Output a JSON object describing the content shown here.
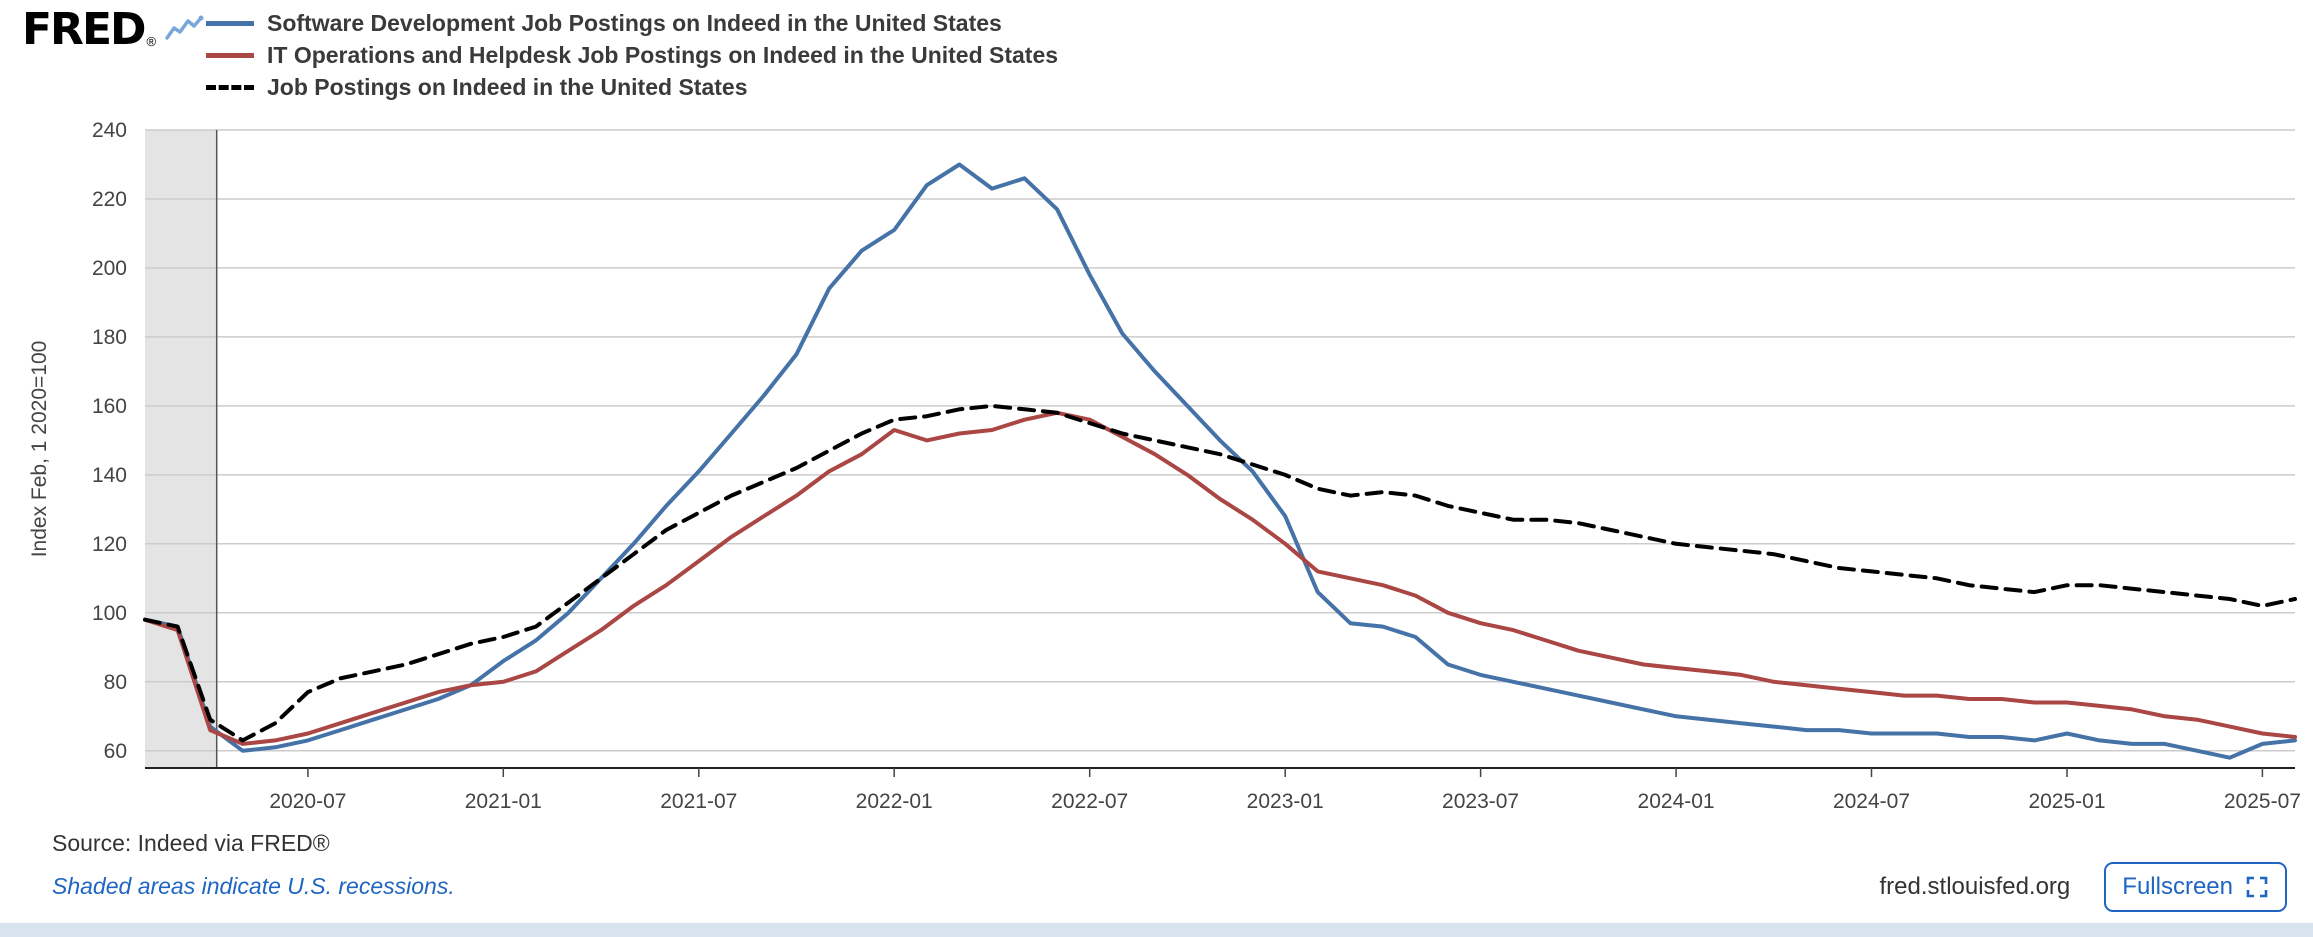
{
  "header": {
    "logo_text": "FRED",
    "logo_reg": "®"
  },
  "chart_data": {
    "type": "line",
    "title": "",
    "xlabel": "",
    "ylabel": "Index Feb, 1 2020=100",
    "ylim": [
      55,
      240
    ],
    "yticks": [
      60,
      80,
      100,
      120,
      140,
      160,
      180,
      200,
      220,
      240
    ],
    "grid": true,
    "legend_position": "top-left",
    "x": [
      "2020-02",
      "2020-03",
      "2020-04",
      "2020-05",
      "2020-06",
      "2020-07",
      "2020-08",
      "2020-09",
      "2020-10",
      "2020-11",
      "2020-12",
      "2021-01",
      "2021-02",
      "2021-03",
      "2021-04",
      "2021-05",
      "2021-06",
      "2021-07",
      "2021-08",
      "2021-09",
      "2021-10",
      "2021-11",
      "2021-12",
      "2022-01",
      "2022-02",
      "2022-03",
      "2022-04",
      "2022-05",
      "2022-06",
      "2022-07",
      "2022-08",
      "2022-09",
      "2022-10",
      "2022-11",
      "2022-12",
      "2023-01",
      "2023-02",
      "2023-03",
      "2023-04",
      "2023-05",
      "2023-06",
      "2023-07",
      "2023-08",
      "2023-09",
      "2023-10",
      "2023-11",
      "2023-12",
      "2024-01",
      "2024-02",
      "2024-03",
      "2024-04",
      "2024-05",
      "2024-06",
      "2024-07",
      "2024-08",
      "2024-09",
      "2024-10",
      "2024-11",
      "2024-12",
      "2025-01",
      "2025-02",
      "2025-03",
      "2025-04",
      "2025-05",
      "2025-06",
      "2025-07",
      "2025-08"
    ],
    "xticks": [
      {
        "label": "2020-07",
        "index": 5
      },
      {
        "label": "2021-01",
        "index": 11
      },
      {
        "label": "2021-07",
        "index": 17
      },
      {
        "label": "2022-01",
        "index": 23
      },
      {
        "label": "2022-07",
        "index": 29
      },
      {
        "label": "2023-01",
        "index": 35
      },
      {
        "label": "2023-07",
        "index": 41
      },
      {
        "label": "2024-01",
        "index": 47
      },
      {
        "label": "2024-07",
        "index": 53
      },
      {
        "label": "2025-01",
        "index": 59
      },
      {
        "label": "2025-07",
        "index": 65
      }
    ],
    "recession_band": {
      "start_index": 0,
      "end_index": 2.2
    },
    "series": [
      {
        "name": "Software Development Job Postings on Indeed in the United States",
        "color": "#4572a7",
        "dash": null,
        "values": [
          98,
          96,
          67,
          60,
          61,
          63,
          66,
          69,
          72,
          75,
          79,
          86,
          92,
          100,
          110,
          120,
          131,
          141,
          152,
          163,
          175,
          194,
          205,
          211,
          224,
          230,
          223,
          226,
          217,
          198,
          181,
          170,
          160,
          150,
          141,
          128,
          106,
          97,
          96,
          93,
          85,
          82,
          80,
          78,
          76,
          74,
          72,
          70,
          69,
          68,
          67,
          66,
          66,
          65,
          65,
          65,
          64,
          64,
          63,
          65,
          63,
          62,
          62,
          60,
          58,
          62,
          63
        ]
      },
      {
        "name": "IT Operations and Helpdesk Job Postings on Indeed in the United States",
        "color": "#aa4643",
        "dash": null,
        "values": [
          98,
          95,
          66,
          62,
          63,
          65,
          68,
          71,
          74,
          77,
          79,
          80,
          83,
          89,
          95,
          102,
          108,
          115,
          122,
          128,
          134,
          141,
          146,
          153,
          150,
          152,
          153,
          156,
          158,
          156,
          151,
          146,
          140,
          133,
          127,
          120,
          112,
          110,
          108,
          105,
          100,
          97,
          95,
          92,
          89,
          87,
          85,
          84,
          83,
          82,
          80,
          79,
          78,
          77,
          76,
          76,
          75,
          75,
          74,
          74,
          73,
          72,
          70,
          69,
          67,
          65,
          64
        ]
      },
      {
        "name": "Job Postings on Indeed in the United States",
        "color": "#000000",
        "dash": "15 9",
        "values": [
          98,
          96,
          69,
          63,
          68,
          77,
          81,
          83,
          85,
          88,
          91,
          93,
          96,
          103,
          110,
          117,
          124,
          129,
          134,
          138,
          142,
          147,
          152,
          156,
          157,
          159,
          160,
          159,
          158,
          155,
          152,
          150,
          148,
          146,
          143,
          140,
          136,
          134,
          135,
          134,
          131,
          129,
          127,
          127,
          126,
          124,
          122,
          120,
          119,
          118,
          117,
          115,
          113,
          112,
          111,
          110,
          108,
          107,
          106,
          108,
          108,
          107,
          106,
          105,
          104,
          102,
          104
        ]
      }
    ]
  },
  "footer": {
    "source": "Source: Indeed via FRED®",
    "recession_note": "Shaded areas indicate U.S. recessions.",
    "site": "fred.stlouisfed.org",
    "fullscreen_label": "Fullscreen"
  },
  "colors": {
    "recession": "#e4e4e4",
    "recession_edge": "#555555",
    "grid": "#cccccc",
    "axis": "#222222",
    "tick_text": "#444444",
    "link": "#1f66c2",
    "text": "#333333",
    "bottom_strip": "#d8e3ef"
  }
}
